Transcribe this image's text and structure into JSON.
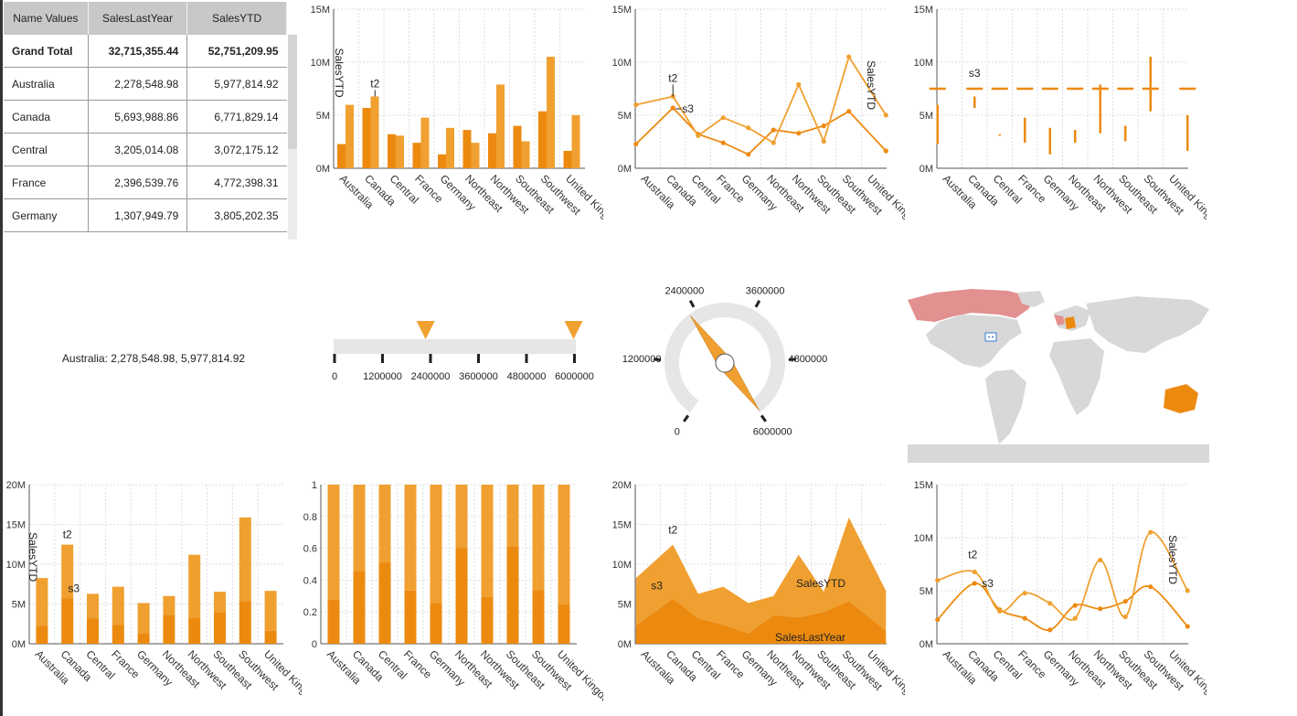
{
  "colors": {
    "accent": "#f0a030",
    "dark": "#ec8a10",
    "grid": "#dedede",
    "axis": "#555"
  },
  "table": {
    "headers": [
      "Name Values",
      "SalesLastYear",
      "SalesYTD"
    ],
    "rows": [
      {
        "name": "Grand Total",
        "last": "32,715,355.44",
        "ytd": "52,751,209.95",
        "bold": true
      },
      {
        "name": "Australia",
        "last": "2,278,548.98",
        "ytd": "5,977,814.92"
      },
      {
        "name": "Canada",
        "last": "5,693,988.86",
        "ytd": "6,771,829.14"
      },
      {
        "name": "Central",
        "last": "3,205,014.08",
        "ytd": "3,072,175.12"
      },
      {
        "name": "France",
        "last": "2,396,539.76",
        "ytd": "4,772,398.31"
      },
      {
        "name": "Germany",
        "last": "1,307,949.79",
        "ytd": "3,805,202.35"
      }
    ]
  },
  "selection_label": "Australia: 2,278,548.98, 5,977,814.92",
  "linear_gauge": {
    "ticks": [
      "0",
      "1200000",
      "2400000",
      "3600000",
      "4800000",
      "6000000"
    ],
    "markers": [
      2278548.98,
      5977814.92
    ],
    "max": 6000000
  },
  "radial_gauge": {
    "ticks": [
      "0",
      "1200000",
      "2400000",
      "3600000",
      "4800000",
      "6000000"
    ],
    "needle": 5977814.92,
    "max": 6000000
  },
  "map_icon": "comment-icon",
  "chart_data": [
    {
      "type": "bar",
      "categories": [
        "Australia",
        "Canada",
        "Central",
        "France",
        "Germany",
        "Northeast",
        "Northwest",
        "Southeast",
        "Southwest",
        "United Kingdom"
      ],
      "series": [
        {
          "name": "SalesLastYear",
          "values": [
            2.28,
            5.69,
            3.21,
            2.4,
            1.31,
            3.61,
            3.3,
            4.0,
            5.37,
            1.64
          ]
        },
        {
          "name": "SalesYTD",
          "values": [
            5.98,
            6.77,
            3.07,
            4.77,
            3.81,
            2.4,
            7.89,
            2.54,
            10.51,
            5.01
          ]
        }
      ],
      "ylim": [
        0,
        15
      ],
      "yticks": [
        "0M",
        "5M",
        "10M",
        "15M"
      ],
      "annotations": [
        "t2",
        "SalesYTD"
      ]
    },
    {
      "type": "line",
      "categories": [
        "Australia",
        "Canada",
        "Central",
        "France",
        "Germany",
        "Northeast",
        "Northwest",
        "Southeast",
        "Southwest",
        "United Kingdom"
      ],
      "series": [
        {
          "name": "SalesLastYear",
          "values": [
            2.28,
            5.69,
            3.21,
            2.4,
            1.31,
            3.61,
            3.3,
            4.0,
            5.37,
            1.64
          ]
        },
        {
          "name": "SalesYTD",
          "values": [
            5.98,
            6.77,
            3.07,
            4.77,
            3.81,
            2.4,
            7.89,
            2.54,
            10.51,
            5.01
          ]
        }
      ],
      "ylim": [
        0,
        15
      ],
      "yticks": [
        "0M",
        "5M",
        "10M",
        "15M"
      ],
      "annotations": [
        "t2",
        "s3",
        "SalesYTD"
      ]
    },
    {
      "type": "bar",
      "categories": [
        "Australia",
        "Canada",
        "Central",
        "France",
        "Germany",
        "Northeast",
        "Northwest",
        "Southeast",
        "Southwest",
        "United Kingdom"
      ],
      "series": [
        {
          "name": "SalesLastYear",
          "values": [
            2.28,
            5.69,
            3.21,
            2.4,
            1.31,
            3.61,
            3.3,
            4.0,
            5.37,
            1.64
          ]
        },
        {
          "name": "SalesYTD",
          "values": [
            5.98,
            6.77,
            3.07,
            4.77,
            3.81,
            2.4,
            7.89,
            2.54,
            10.51,
            5.01
          ]
        }
      ],
      "target": 7.5,
      "ylim": [
        0,
        15
      ],
      "yticks": [
        "0M",
        "5M",
        "10M",
        "15M"
      ],
      "annotations": [
        "s3"
      ]
    },
    {
      "type": "bar",
      "categories": [
        "Australia",
        "Canada",
        "Central",
        "France",
        "Germany",
        "Northeast",
        "Northwest",
        "Southeast",
        "Southwest",
        "United Kingdom"
      ],
      "series": [
        {
          "name": "SalesLastYear",
          "values": [
            2.28,
            5.69,
            3.21,
            2.4,
            1.31,
            3.61,
            3.3,
            4.0,
            5.37,
            1.64
          ]
        },
        {
          "name": "SalesYTD",
          "values": [
            5.98,
            6.77,
            3.07,
            4.77,
            3.81,
            2.4,
            7.89,
            2.54,
            10.51,
            5.01
          ]
        }
      ],
      "stacked": true,
      "ylim": [
        0,
        20
      ],
      "yticks": [
        "0M",
        "5M",
        "10M",
        "15M",
        "20M"
      ],
      "annotations": [
        "t2",
        "s3",
        "SalesYTD"
      ]
    },
    {
      "type": "bar",
      "categories": [
        "Australia",
        "Canada",
        "Central",
        "France",
        "Germany",
        "Northeast",
        "Northwest",
        "Southeast",
        "Southwest",
        "United Kingdom"
      ],
      "series": [
        {
          "name": "SalesLastYear",
          "values": [
            2.28,
            5.69,
            3.21,
            2.4,
            1.31,
            3.61,
            3.3,
            4.0,
            5.37,
            1.64
          ]
        },
        {
          "name": "SalesYTD",
          "values": [
            5.98,
            6.77,
            3.07,
            4.77,
            3.81,
            2.4,
            7.89,
            2.54,
            10.51,
            5.01
          ]
        }
      ],
      "stacked": "percent",
      "ylim": [
        0,
        1
      ],
      "yticks": [
        "0",
        "0.2",
        "0.4",
        "0.6",
        "0.8",
        "1"
      ]
    },
    {
      "type": "area",
      "categories": [
        "Australia",
        "Canada",
        "Central",
        "France",
        "Germany",
        "Northeast",
        "Northwest",
        "Southeast",
        "Southwest",
        "United Kingdom"
      ],
      "series": [
        {
          "name": "SalesLastYear",
          "values": [
            2.28,
            5.69,
            3.21,
            2.4,
            1.31,
            3.61,
            3.3,
            4.0,
            5.37,
            1.64
          ]
        },
        {
          "name": "SalesYTD",
          "values": [
            5.98,
            6.77,
            3.07,
            4.77,
            3.81,
            2.4,
            7.89,
            2.54,
            10.51,
            5.01
          ]
        }
      ],
      "stacked": true,
      "ylim": [
        0,
        20
      ],
      "yticks": [
        "0M",
        "5M",
        "10M",
        "15M",
        "20M"
      ],
      "annotations": [
        "t2",
        "s3",
        "SalesYTD",
        "SalesLastYear"
      ]
    },
    {
      "type": "line",
      "smooth": true,
      "categories": [
        "Australia",
        "Canada",
        "Central",
        "France",
        "Germany",
        "Northeast",
        "Northwest",
        "Southeast",
        "Southwest",
        "United Kingdom"
      ],
      "series": [
        {
          "name": "SalesLastYear",
          "values": [
            2.28,
            5.69,
            3.21,
            2.4,
            1.31,
            3.61,
            3.3,
            4.0,
            5.37,
            1.64
          ]
        },
        {
          "name": "SalesYTD",
          "values": [
            5.98,
            6.77,
            3.07,
            4.77,
            3.81,
            2.4,
            7.89,
            2.54,
            10.51,
            5.01
          ]
        }
      ],
      "ylim": [
        0,
        15
      ],
      "yticks": [
        "0M",
        "5M",
        "10M",
        "15M"
      ],
      "annotations": [
        "t2",
        "s3",
        "SalesYTD"
      ]
    }
  ]
}
